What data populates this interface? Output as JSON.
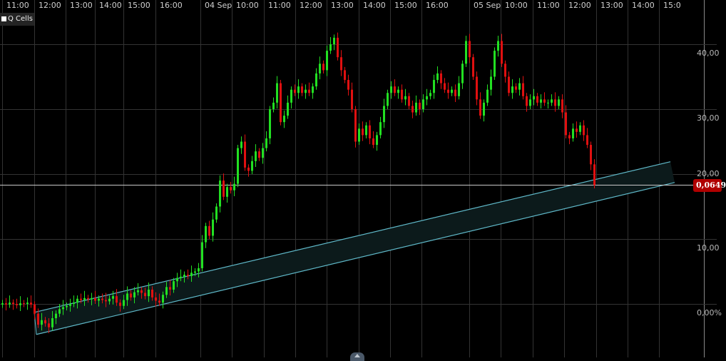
{
  "legend": {
    "label": "Q Cells"
  },
  "price_badge": "0,0649",
  "colors": {
    "up": "#22e022",
    "down": "#e01010",
    "channel_line": "#5fb8c8",
    "channel_fill": "#0c1a1b",
    "badge": "#b00000",
    "grid": "#333333"
  },
  "chart_data": {
    "type": "candlestick",
    "x_tick_labels": [
      "11:00",
      "12:00",
      "13:00",
      "14:00",
      "15:00",
      "16:00",
      "04 Sep",
      "10:00",
      "11:00",
      "12:00",
      "13:00",
      "14:00",
      "15:00",
      "16:00",
      "05 Sep",
      "10:00",
      "11:00",
      "12:00",
      "13:00",
      "14:00",
      "15:0"
    ],
    "y_tick_labels": [
      "40,00",
      "30,00",
      "20,00",
      "10,00",
      "0,00%"
    ],
    "y_ticks": [
      40,
      30,
      20,
      10,
      0
    ],
    "ylim": [
      -8,
      46
    ],
    "grid": true,
    "closes": [
      0.1,
      -0.1,
      0.2,
      0,
      -0.2,
      0.1,
      0,
      0.2,
      -0.1,
      -1.5,
      -3.2,
      -2.5,
      -3.0,
      -3.6,
      -2.2,
      -1.5,
      -0.8,
      -0.5,
      -0.3,
      0.0,
      0.2,
      0.8,
      0.6,
      0.9,
      0.7,
      0.9,
      0.5,
      0.8,
      0.6,
      0.4,
      0.8,
      1.2,
      0.2,
      -0.3,
      0.6,
      1.6,
      1.0,
      1.8,
      2.1,
      1.7,
      1.2,
      2.2,
      1.0,
      0.5,
      0.2,
      1.4,
      2.6,
      2.2,
      3.5,
      4.0,
      4.2,
      4.5,
      4.3,
      4.8,
      5.0,
      5.5,
      9.5,
      12.0,
      10.5,
      13.0,
      15.0,
      19.0,
      16.5,
      18.0,
      17.5,
      18.5,
      24.0,
      25.0,
      21.0,
      20.5,
      22.0,
      23.5,
      22.5,
      24.0,
      25.5,
      30.0,
      31.0,
      34.0,
      28.0,
      29.0,
      31.0,
      33.0,
      32.5,
      33.5,
      32.5,
      33.0,
      32.5,
      33.5,
      35.5,
      37.0,
      36.0,
      39.0,
      40.0,
      41.0,
      38.0,
      36.0,
      34.5,
      33.0,
      30.0,
      25.0,
      27.0,
      26.0,
      27.5,
      25.5,
      24.5,
      26.0,
      28.0,
      30.5,
      32.5,
      33.5,
      32.5,
      33.0,
      31.5,
      32.0,
      30.5,
      29.5,
      31.0,
      30.0,
      31.5,
      32.0,
      32.5,
      34.5,
      35.5,
      34.0,
      33.0,
      32.5,
      33.0,
      32.0,
      34.0,
      37.0,
      40.5,
      38.0,
      35.0,
      31.5,
      29.0,
      31.0,
      33.0,
      35.0,
      39.0,
      40.5,
      37.0,
      35.0,
      32.5,
      33.5,
      33.0,
      34.0,
      32.0,
      30.5,
      31.5,
      32.0,
      31.0,
      31.5,
      31.0,
      31.0,
      31.5,
      30.5,
      31.5,
      29.5,
      26.0,
      25.5,
      27.0,
      26.5,
      27.5,
      26.0,
      24.5,
      21.5,
      18.3
    ],
    "last_price_level": 18.3,
    "channel": {
      "upper": [
        -1.3,
        21.9
      ],
      "lower": [
        -4.7,
        18.7
      ]
    }
  }
}
